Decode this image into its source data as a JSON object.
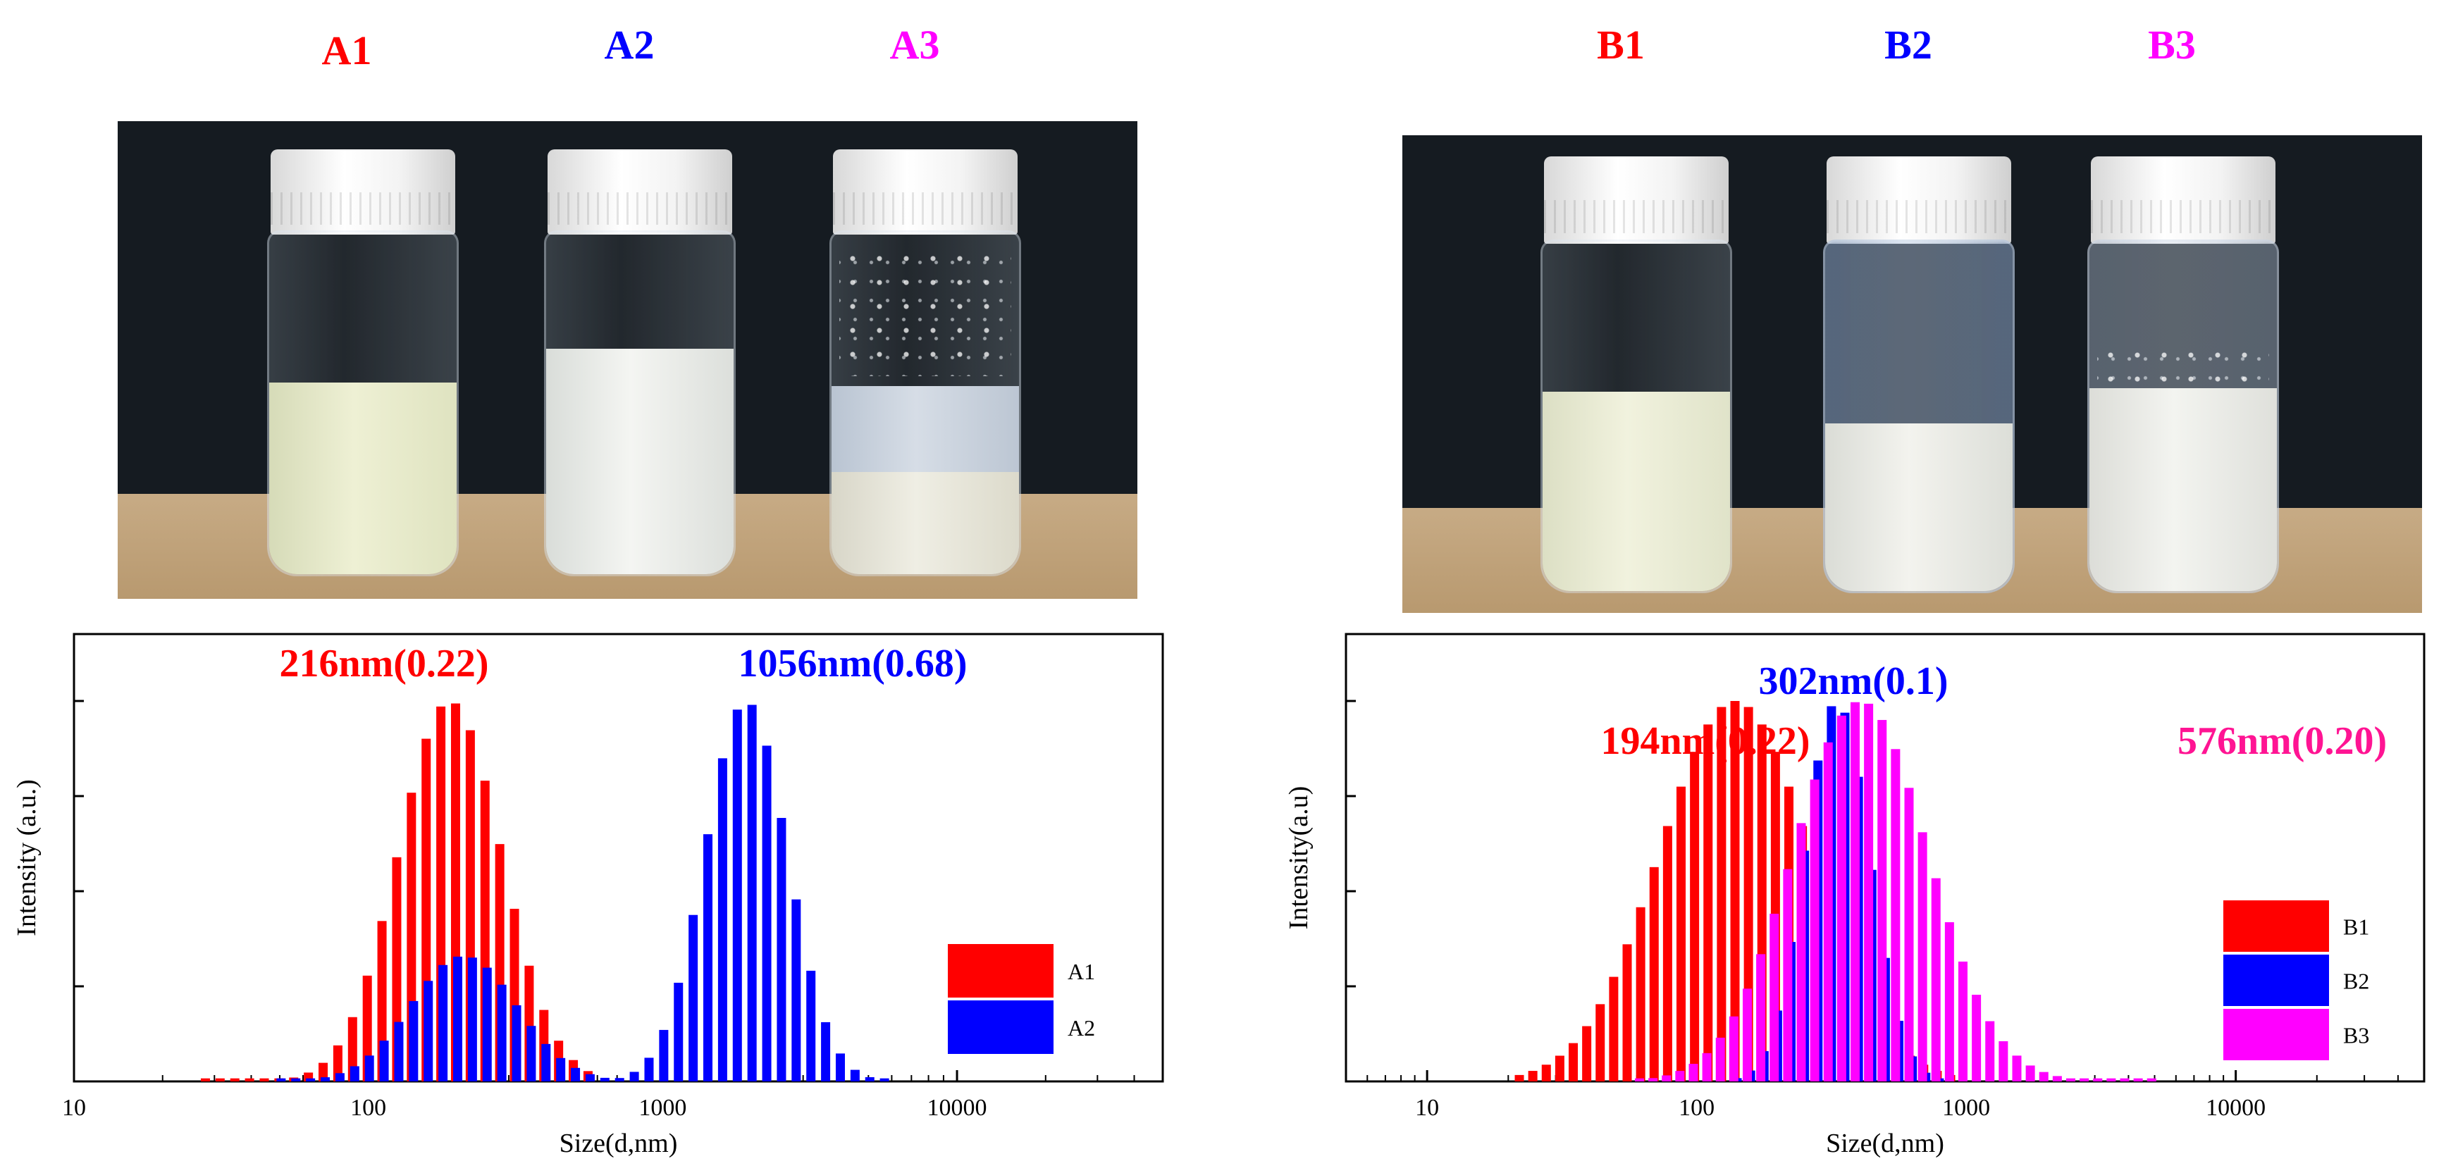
{
  "panels": [
    {
      "id": "A",
      "samples": [
        {
          "label": "A1",
          "color": "#ff0000",
          "phase": "single-emulsion"
        },
        {
          "label": "A2",
          "color": "#0000ff",
          "phase": "single-emulsion"
        },
        {
          "label": "A3",
          "color": "#ff00ff",
          "phase": "separated"
        }
      ]
    },
    {
      "id": "B",
      "samples": [
        {
          "label": "B1",
          "color": "#ff0000",
          "phase": "single-emulsion"
        },
        {
          "label": "B2",
          "color": "#0000ff",
          "phase": "single-emulsion"
        },
        {
          "label": "B3",
          "color": "#ff00ff",
          "phase": "single-emulsion"
        }
      ]
    }
  ],
  "chart_data": [
    {
      "id": "A",
      "type": "bar",
      "xscale": "log",
      "xlabel": "Size(d,nm)",
      "ylabel": "Intensity (a.u.)",
      "xlim": [
        10,
        50000
      ],
      "ylim": [
        0,
        1.0
      ],
      "xticks": [
        "10",
        "100",
        "1000",
        "10000"
      ],
      "legend": {
        "position": "right",
        "entries": [
          "A1",
          "A2"
        ]
      },
      "annotations": [
        {
          "text": "216nm(0.22)",
          "color": "#ff0000"
        },
        {
          "text": "1056nm(0.68)",
          "color": "#0000ff"
        }
      ],
      "series": [
        {
          "name": "A1",
          "color": "#ff0000",
          "log_center": 2.28,
          "log_sd": 0.175,
          "from": 1.45,
          "to": 2.75,
          "peak": 1.0
        },
        {
          "name": "A2",
          "color": "#0000ff",
          "log_center": 3.28,
          "log_sd": 0.14,
          "from": 1.7,
          "to": 3.78,
          "peak": 1.0,
          "secondary": {
            "log_center": 2.32,
            "log_sd": 0.18,
            "peak": 0.33
          }
        }
      ]
    },
    {
      "id": "B",
      "type": "bar",
      "xscale": "log",
      "xlabel": "Size(d,nm)",
      "ylabel": "Intensity(a.u)",
      "xlim": [
        5,
        50000
      ],
      "ylim": [
        0,
        1.0
      ],
      "xticks": [
        "10",
        "100",
        "1000",
        "10000"
      ],
      "legend": {
        "position": "right",
        "entries": [
          "B1",
          "B2",
          "B3"
        ]
      },
      "annotations": [
        {
          "text": "194nm(0.22)",
          "color": "#ff0000"
        },
        {
          "text": "302nm(0.1)",
          "color": "#0000ff"
        },
        {
          "text": "576nm(0.20)",
          "color": "#ff1493"
        }
      ],
      "series": [
        {
          "name": "B1",
          "color": "#ff0000",
          "log_center": 2.15,
          "log_sd": 0.28,
          "from": 1.35,
          "to": 2.98,
          "peak": 1.0
        },
        {
          "name": "B2",
          "color": "#0000ff",
          "log_center": 2.52,
          "log_sd": 0.12,
          "from": 2.15,
          "to": 2.92,
          "peak": 1.0
        },
        {
          "name": "B3",
          "color": "#ff00ff",
          "log_center": 2.6,
          "log_sd": 0.25,
          "from": 1.78,
          "to": 3.72,
          "peak": 1.0
        }
      ]
    }
  ]
}
